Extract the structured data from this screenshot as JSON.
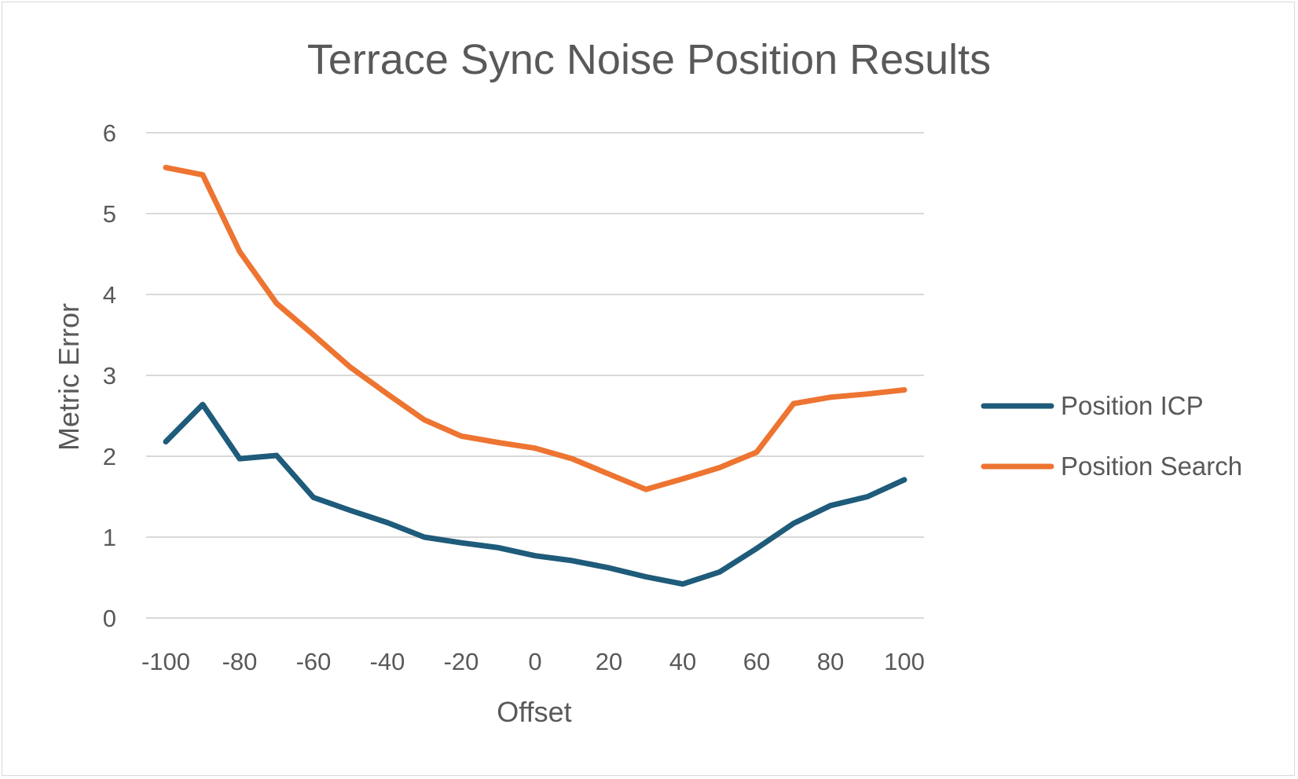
{
  "chart_data": {
    "type": "line",
    "title": "Terrace Sync Noise Position Results",
    "xlabel": "Offset",
    "ylabel": "Metric Error",
    "x": [
      -100,
      -90,
      -80,
      -70,
      -60,
      -50,
      -40,
      -30,
      -20,
      -10,
      0,
      10,
      20,
      30,
      40,
      50,
      60,
      70,
      80,
      90,
      100
    ],
    "x_ticks": [
      "-100",
      "-80",
      "-60",
      "-40",
      "-20",
      "0",
      "20",
      "40",
      "60",
      "80",
      "100"
    ],
    "y_ticks": [
      "0",
      "1",
      "2",
      "3",
      "4",
      "5",
      "6"
    ],
    "xlim": [
      -100,
      100
    ],
    "ylim": [
      0,
      6
    ],
    "grid": true,
    "legend_position": "right",
    "series": [
      {
        "name": "Position ICP",
        "color": "#1f5b7a",
        "values": [
          2.18,
          2.64,
          1.97,
          2.01,
          1.49,
          1.33,
          1.18,
          1.0,
          0.93,
          0.87,
          0.77,
          0.71,
          0.62,
          0.51,
          0.42,
          0.57,
          0.86,
          1.17,
          1.39,
          1.5,
          1.71
        ]
      },
      {
        "name": "Position Search",
        "color": "#ed7431",
        "values": [
          5.57,
          5.48,
          4.53,
          3.89,
          3.5,
          3.1,
          2.77,
          2.45,
          2.25,
          2.17,
          2.1,
          1.97,
          1.78,
          1.59,
          1.72,
          1.86,
          2.05,
          2.65,
          2.73,
          2.77,
          2.82
        ]
      }
    ]
  }
}
